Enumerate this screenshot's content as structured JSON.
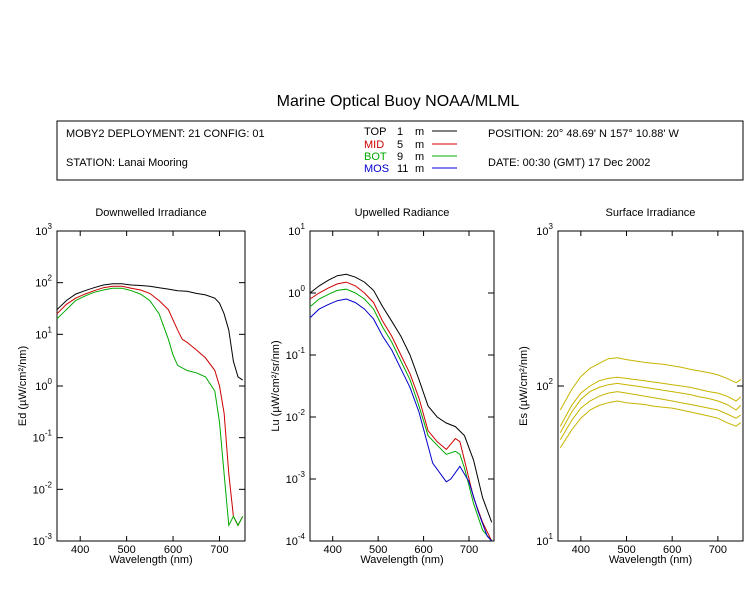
{
  "title": "Marine Optical Buoy NOAA/MLML",
  "info": {
    "deployment": "MOBY2 DEPLOYMENT: 21 CONFIG: 01",
    "station": "STATION: Lanai Mooring",
    "position": "POSITION: 20° 48.69' N   157° 10.88' W",
    "date": "DATE: 00:30 (GMT) 17 Dec 2002",
    "legend": [
      {
        "name": "TOP",
        "depth": "1",
        "unit": "m",
        "color": "#000000"
      },
      {
        "name": "MID",
        "depth": "5",
        "unit": "m",
        "color": "#cc0000"
      },
      {
        "name": "BOT",
        "depth": "9",
        "unit": "m",
        "color": "#00aa00"
      },
      {
        "name": "MOS",
        "depth": "11",
        "unit": "m",
        "color": "#0000cc"
      }
    ]
  },
  "colors": {
    "TOP": "#000000",
    "MID": "#cc0000",
    "BOT": "#00aa00",
    "MOS": "#0000cc",
    "surface": "#c8b400"
  },
  "chart_data": [
    {
      "type": "line",
      "title": "Downwelled Irradiance",
      "xlabel": "Wavelength (nm)",
      "ylabel": "Ed  (µW/cm²/nm)",
      "xlim": [
        350,
        755
      ],
      "ylim": [
        0.001,
        1000
      ],
      "yscale": "log",
      "xticks": [
        400,
        500,
        600,
        700
      ],
      "yticks": [
        {
          "base": "10",
          "exp": "-3"
        },
        {
          "base": "10",
          "exp": "-2"
        },
        {
          "base": "10",
          "exp": "-1"
        },
        {
          "base": "10",
          "exp": "0"
        },
        {
          "base": "10",
          "exp": "1"
        },
        {
          "base": "10",
          "exp": "2"
        },
        {
          "base": "10",
          "exp": "3"
        }
      ],
      "series": [
        {
          "name": "TOP",
          "x": [
            350,
            370,
            390,
            410,
            430,
            450,
            470,
            490,
            510,
            530,
            550,
            570,
            590,
            610,
            630,
            650,
            670,
            690,
            700,
            710,
            720,
            730,
            740,
            750
          ],
          "values": [
            30,
            45,
            60,
            70,
            80,
            90,
            95,
            95,
            90,
            88,
            85,
            80,
            75,
            70,
            68,
            62,
            58,
            50,
            40,
            25,
            12,
            3,
            1.5,
            1.3
          ]
        },
        {
          "name": "MID",
          "x": [
            350,
            370,
            390,
            410,
            430,
            450,
            470,
            490,
            510,
            530,
            550,
            570,
            590,
            610,
            620,
            630,
            650,
            670,
            690,
            700,
            710,
            720,
            730,
            740,
            750
          ],
          "values": [
            25,
            38,
            50,
            60,
            70,
            80,
            85,
            85,
            78,
            72,
            62,
            45,
            30,
            12,
            8,
            7,
            5,
            3.5,
            2,
            1,
            0.3,
            0.02,
            0.003,
            0.002,
            0.003
          ]
        },
        {
          "name": "BOT",
          "x": [
            350,
            370,
            390,
            410,
            430,
            450,
            470,
            490,
            510,
            530,
            550,
            570,
            590,
            600,
            610,
            630,
            650,
            670,
            690,
            700,
            710,
            720,
            730,
            740,
            750
          ],
          "values": [
            20,
            30,
            45,
            55,
            65,
            72,
            78,
            78,
            70,
            60,
            45,
            25,
            8,
            4,
            2.5,
            2,
            1.8,
            1.5,
            0.8,
            0.2,
            0.02,
            0.002,
            0.003,
            0.002,
            0.003
          ]
        }
      ]
    },
    {
      "type": "line",
      "title": "Upwelled Radiance",
      "xlabel": "Wavelength (nm)",
      "ylabel": "Lu  (µW/cm²/sr/nm)",
      "xlim": [
        350,
        755
      ],
      "ylim": [
        0.0001,
        10
      ],
      "yscale": "log",
      "xticks": [
        400,
        500,
        600,
        700
      ],
      "yticks": [
        {
          "base": "10",
          "exp": "-4"
        },
        {
          "base": "10",
          "exp": "-3"
        },
        {
          "base": "10",
          "exp": "-2"
        },
        {
          "base": "10",
          "exp": "-1"
        },
        {
          "base": "10",
          "exp": "0"
        },
        {
          "base": "10",
          "exp": "1"
        }
      ],
      "series": [
        {
          "name": "TOP",
          "x": [
            350,
            370,
            390,
            410,
            430,
            450,
            470,
            490,
            510,
            530,
            550,
            570,
            590,
            610,
            630,
            650,
            670,
            690,
            710,
            730,
            750
          ],
          "values": [
            1.0,
            1.3,
            1.6,
            1.9,
            2.0,
            1.8,
            1.5,
            1.1,
            0.6,
            0.35,
            0.2,
            0.1,
            0.04,
            0.015,
            0.01,
            0.008,
            0.007,
            0.005,
            0.002,
            0.0005,
            0.0002
          ]
        },
        {
          "name": "MID",
          "x": [
            350,
            370,
            390,
            410,
            430,
            450,
            470,
            490,
            510,
            530,
            550,
            570,
            590,
            610,
            630,
            650,
            670,
            680,
            690,
            710,
            730,
            750
          ],
          "values": [
            0.8,
            1.0,
            1.2,
            1.4,
            1.5,
            1.3,
            1.0,
            0.7,
            0.35,
            0.2,
            0.1,
            0.05,
            0.02,
            0.006,
            0.004,
            0.003,
            0.0045,
            0.004,
            0.002,
            0.0005,
            0.0002,
            0.0001
          ]
        },
        {
          "name": "BOT",
          "x": [
            350,
            370,
            390,
            410,
            430,
            450,
            470,
            490,
            510,
            530,
            550,
            570,
            590,
            610,
            630,
            650,
            670,
            680,
            690,
            710,
            730,
            750
          ],
          "values": [
            0.6,
            0.8,
            0.95,
            1.1,
            1.15,
            1.0,
            0.8,
            0.55,
            0.28,
            0.16,
            0.08,
            0.04,
            0.015,
            0.005,
            0.0035,
            0.0025,
            0.0028,
            0.0025,
            0.0015,
            0.0004,
            0.00015,
            0.0001
          ]
        },
        {
          "name": "MOS",
          "x": [
            350,
            370,
            390,
            410,
            430,
            450,
            470,
            490,
            510,
            530,
            550,
            570,
            590,
            620,
            650,
            660,
            680,
            700,
            720,
            740,
            750
          ],
          "values": [
            0.4,
            0.55,
            0.65,
            0.75,
            0.8,
            0.7,
            0.55,
            0.38,
            0.2,
            0.12,
            0.06,
            0.03,
            0.012,
            0.0018,
            0.0009,
            0.001,
            0.0016,
            0.0009,
            0.0003,
            0.00012,
            0.0001
          ]
        }
      ]
    },
    {
      "type": "line",
      "title": "Surface Irradiance",
      "xlabel": "Wavelength (nm)",
      "ylabel": "Es  (µW/cm²/nm)",
      "xlim": [
        350,
        755
      ],
      "ylim": [
        10,
        1000
      ],
      "yscale": "log",
      "xticks": [
        400,
        500,
        600,
        700
      ],
      "yticks": [
        {
          "base": "10",
          "exp": "1"
        },
        {
          "base": "10",
          "exp": "2"
        },
        {
          "base": "10",
          "exp": "3"
        }
      ],
      "series": [
        {
          "x": [
            355,
            380,
            400,
            420,
            440,
            460,
            480,
            500,
            520,
            540,
            560,
            580,
            600,
            620,
            640,
            660,
            680,
            700,
            720,
            740,
            750
          ],
          "values": [
            70,
            95,
            115,
            130,
            140,
            150,
            152,
            148,
            145,
            142,
            140,
            138,
            135,
            132,
            128,
            125,
            122,
            118,
            112,
            105,
            110
          ]
        },
        {
          "x": [
            355,
            380,
            400,
            420,
            440,
            460,
            480,
            500,
            520,
            540,
            560,
            580,
            600,
            620,
            640,
            660,
            680,
            700,
            720,
            740,
            750
          ],
          "values": [
            55,
            75,
            90,
            100,
            108,
            112,
            114,
            112,
            110,
            108,
            106,
            104,
            102,
            100,
            98,
            95,
            92,
            90,
            86,
            80,
            85
          ]
        },
        {
          "x": [
            355,
            380,
            400,
            420,
            440,
            460,
            480,
            500,
            520,
            540,
            560,
            580,
            600,
            620,
            640,
            660,
            680,
            700,
            720,
            740,
            750
          ],
          "values": [
            50,
            68,
            82,
            92,
            98,
            102,
            104,
            102,
            100,
            98,
            96,
            94,
            92,
            90,
            88,
            85,
            83,
            80,
            76,
            70,
            75
          ]
        },
        {
          "x": [
            355,
            380,
            400,
            420,
            440,
            460,
            480,
            500,
            520,
            540,
            560,
            580,
            600,
            620,
            640,
            660,
            680,
            700,
            720,
            740,
            750
          ],
          "values": [
            45,
            60,
            72,
            80,
            86,
            90,
            92,
            90,
            88,
            86,
            84,
            82,
            80,
            78,
            76,
            74,
            72,
            70,
            66,
            62,
            65
          ]
        },
        {
          "x": [
            355,
            380,
            400,
            420,
            440,
            460,
            480,
            500,
            520,
            540,
            560,
            580,
            600,
            620,
            640,
            660,
            680,
            700,
            720,
            740,
            750
          ],
          "values": [
            40,
            52,
            62,
            70,
            75,
            78,
            80,
            78,
            77,
            76,
            74,
            73,
            72,
            70,
            68,
            66,
            64,
            62,
            58,
            55,
            58
          ]
        }
      ]
    }
  ]
}
